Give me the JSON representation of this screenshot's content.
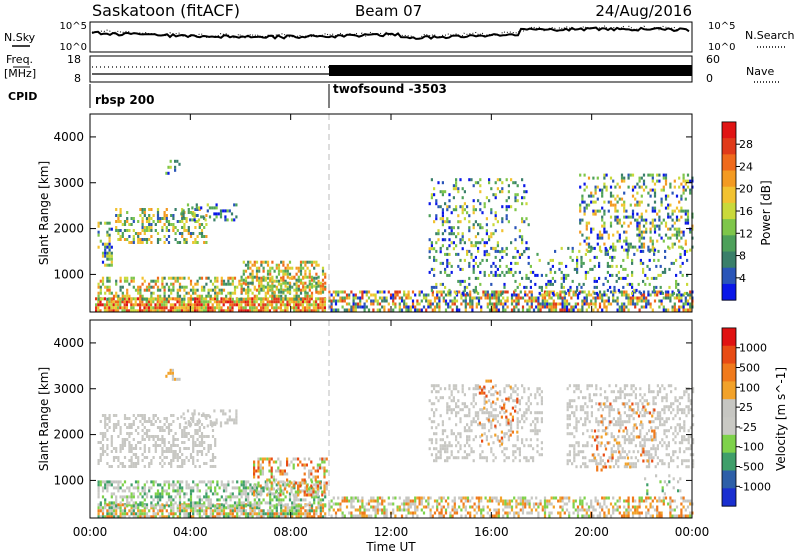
{
  "header": {
    "title": "Saskatoon (fitACF)",
    "beam": "Beam 07",
    "date": "24/Aug/2016"
  },
  "top_panels": {
    "nsky_label": "N.Sky",
    "nsearch_label": "N.Search",
    "left_ticks": [
      "10^5",
      "10^0"
    ],
    "right_ticks": [
      "10^5",
      "10^0"
    ],
    "freq_label_line1": "Freq.",
    "freq_label_line2": "[MHz]",
    "freq_ticks": [
      "18",
      "8"
    ],
    "nave_label": "Nave",
    "nave_ticks": [
      "60",
      "0"
    ],
    "cpid_label": "CPID",
    "cpid_segments": [
      {
        "label": "rbsp 200",
        "start_hour": 0
      },
      {
        "label": "twofsound -3503",
        "start_hour": 9.5
      }
    ]
  },
  "colors": {
    "power_scale": [
      "#0a17e8",
      "#2a55b8",
      "#3a7f6a",
      "#4da05a",
      "#7ec64a",
      "#c9d93a",
      "#f2c230",
      "#f39a22",
      "#ef6a1c",
      "#e03a1a",
      "#e01414"
    ],
    "velocity_scale": [
      "#1a2fd0",
      "#2d5fa8",
      "#3f9f6a",
      "#7ed24a",
      "#c9c9c4",
      "#c6c6c2",
      "#f2a22a",
      "#f07a1c",
      "#e84b14",
      "#e01212"
    ]
  },
  "chart_data": [
    {
      "type": "heatmap",
      "name": "power",
      "xlabel": "",
      "ylabel": "Slant Range [km]",
      "x_ticks": [
        "00:00",
        "04:00",
        "08:00",
        "12:00",
        "16:00",
        "20:00",
        "00:00"
      ],
      "y_ticks": [
        1000,
        2000,
        3000,
        4000
      ],
      "xlim_hours": [
        0,
        24
      ],
      "ylim_km": [
        180,
        4500
      ],
      "colorbar": {
        "label": "Power [dB]",
        "ticks": [
          4,
          8,
          12,
          16,
          20,
          24,
          28
        ]
      },
      "mode_change_hour": 9.5,
      "clusters": [
        {
          "t0": 0.2,
          "t1": 9.4,
          "r0": 200,
          "r1": 500,
          "density": 0.85,
          "c0": 4,
          "c1": 10
        },
        {
          "t0": 0.3,
          "t1": 9.4,
          "r0": 450,
          "r1": 950,
          "density": 0.5,
          "c0": 2,
          "c1": 8
        },
        {
          "t0": 6.0,
          "t1": 9.4,
          "r0": 600,
          "r1": 1300,
          "density": 0.45,
          "c0": 2,
          "c1": 8
        },
        {
          "t0": 0.3,
          "t1": 0.9,
          "r0": 1200,
          "r1": 2150,
          "density": 0.35,
          "c0": 0,
          "c1": 6
        },
        {
          "t0": 1.0,
          "t1": 4.6,
          "r0": 1700,
          "r1": 2450,
          "density": 0.45,
          "c0": 1,
          "c1": 7
        },
        {
          "t0": 3.6,
          "t1": 5.8,
          "r0": 2200,
          "r1": 2550,
          "density": 0.3,
          "c0": 0,
          "c1": 5
        },
        {
          "t0": 3.0,
          "t1": 3.7,
          "r0": 3200,
          "r1": 3500,
          "density": 0.35,
          "c0": 0,
          "c1": 6
        },
        {
          "t0": 9.5,
          "t1": 24.0,
          "r0": 200,
          "r1": 650,
          "density": 0.55,
          "c0": 0,
          "c1": 9
        },
        {
          "t0": 13.5,
          "t1": 23.8,
          "r0": 600,
          "r1": 1600,
          "density": 0.2,
          "c0": 0,
          "c1": 5
        },
        {
          "t0": 13.5,
          "t1": 17.5,
          "r0": 1400,
          "r1": 3100,
          "density": 0.22,
          "c0": 0,
          "c1": 6
        },
        {
          "t0": 19.5,
          "t1": 24.0,
          "r0": 1500,
          "r1": 3200,
          "density": 0.3,
          "c0": 0,
          "c1": 7
        }
      ]
    },
    {
      "type": "heatmap",
      "name": "velocity",
      "xlabel": "Time UT",
      "ylabel": "Slant Range [km]",
      "x_ticks": [
        "00:00",
        "04:00",
        "08:00",
        "12:00",
        "16:00",
        "20:00",
        "00:00"
      ],
      "y_ticks": [
        1000,
        2000,
        3000,
        4000
      ],
      "xlim_hours": [
        0,
        24
      ],
      "ylim_km": [
        180,
        4500
      ],
      "colorbar": {
        "label": "Velocity [m s^-1]",
        "ticks": [
          1000,
          500,
          100,
          25,
          -25,
          -100,
          -500,
          -1000
        ]
      },
      "mode_change_hour": 9.5,
      "clusters": [
        {
          "t0": 0.3,
          "t1": 9.4,
          "r0": 200,
          "r1": 500,
          "density": 0.8,
          "c0": 2,
          "c1": 7
        },
        {
          "t0": 0.3,
          "t1": 9.4,
          "r0": 450,
          "r1": 1000,
          "density": 0.5,
          "c0": 2,
          "c1": 5
        },
        {
          "t0": 6.5,
          "t1": 9.4,
          "r0": 700,
          "r1": 1500,
          "density": 0.45,
          "c0": 3,
          "c1": 8
        },
        {
          "t0": 0.3,
          "t1": 5.0,
          "r0": 1300,
          "r1": 2450,
          "density": 0.4,
          "c0": 4,
          "c1": 5
        },
        {
          "t0": 3.6,
          "t1": 5.8,
          "r0": 2200,
          "r1": 2550,
          "density": 0.3,
          "c0": 4,
          "c1": 5
        },
        {
          "t0": 3.0,
          "t1": 3.7,
          "r0": 3200,
          "r1": 3500,
          "density": 0.3,
          "c0": 4,
          "c1": 6
        },
        {
          "t0": 9.5,
          "t1": 24.0,
          "r0": 200,
          "r1": 650,
          "density": 0.5,
          "c0": 3,
          "c1": 7
        },
        {
          "t0": 13.5,
          "t1": 18.0,
          "r0": 1400,
          "r1": 3100,
          "density": 0.3,
          "c0": 4,
          "c1": 5
        },
        {
          "t0": 15.5,
          "t1": 17.0,
          "r0": 1800,
          "r1": 3200,
          "density": 0.12,
          "c0": 6,
          "c1": 8
        },
        {
          "t0": 19.0,
          "t1": 24.0,
          "r0": 1300,
          "r1": 3100,
          "density": 0.35,
          "c0": 4,
          "c1": 5
        },
        {
          "t0": 20.0,
          "t1": 22.5,
          "r0": 1200,
          "r1": 2700,
          "density": 0.12,
          "c0": 6,
          "c1": 8
        },
        {
          "t0": 22.0,
          "t1": 24.0,
          "r0": 700,
          "r1": 1200,
          "density": 0.15,
          "c0": 2,
          "c1": 5
        }
      ]
    }
  ]
}
